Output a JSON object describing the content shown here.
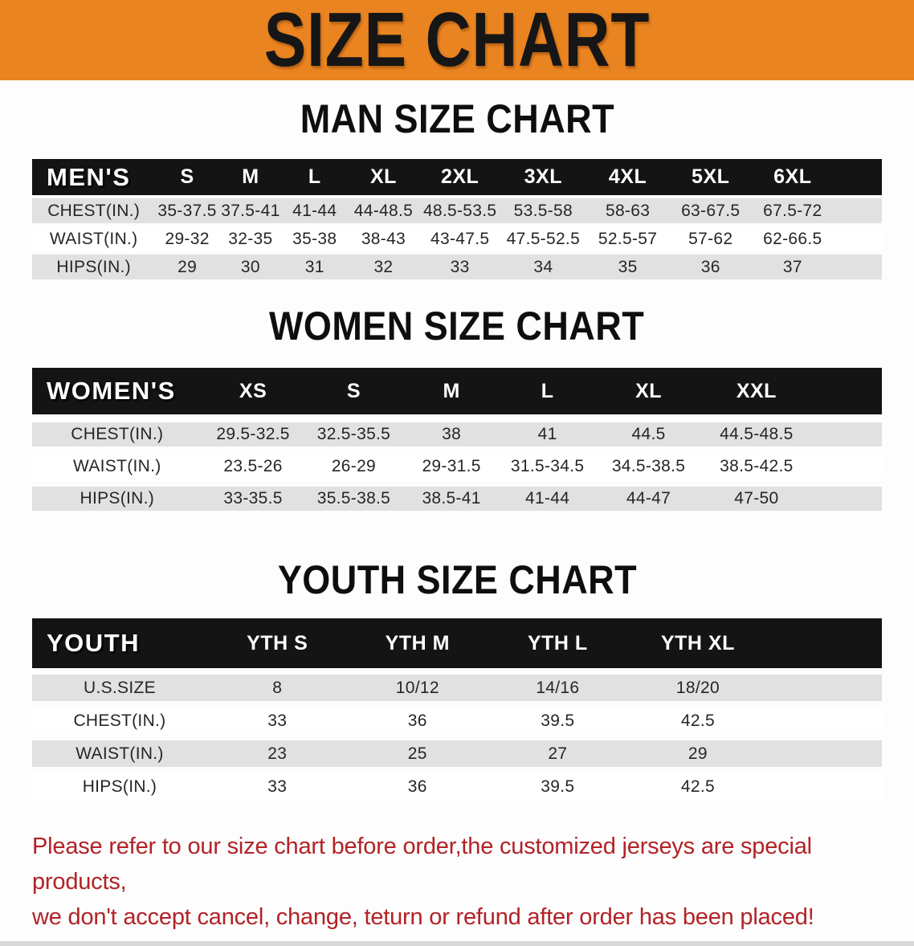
{
  "banner": {
    "title": "SIZE CHART"
  },
  "sections": [
    {
      "id": "man",
      "title": "MAN SIZE CHART",
      "table": {
        "header": [
          "MEN'S",
          "S",
          "M",
          "L",
          "XL",
          "2XL",
          "3XL",
          "4XL",
          "5XL",
          "6XL"
        ],
        "rows": [
          {
            "label": "CHEST(IN.)",
            "values": [
              "35-37.5",
              "37.5-41",
              "41-44",
              "44-48.5",
              "48.5-53.5",
              "53.5-58",
              "58-63",
              "63-67.5",
              "67.5-72"
            ]
          },
          {
            "label": "WAIST(IN.)",
            "values": [
              "29-32",
              "32-35",
              "35-38",
              "38-43",
              "43-47.5",
              "47.5-52.5",
              "52.5-57",
              "57-62",
              "62-66.5"
            ]
          },
          {
            "label": "HIPS(IN.)",
            "values": [
              "29",
              "30",
              "31",
              "32",
              "33",
              "34",
              "35",
              "36",
              "37"
            ]
          }
        ]
      }
    },
    {
      "id": "women",
      "title": "WOMEN SIZE CHART",
      "table": {
        "header": [
          "WOMEN'S",
          "XS",
          "S",
          "M",
          "L",
          "XL",
          "XXL"
        ],
        "rows": [
          {
            "label": "CHEST(IN.)",
            "values": [
              "29.5-32.5",
              "32.5-35.5",
              "38",
              "41",
              "44.5",
              "44.5-48.5"
            ]
          },
          {
            "label": "WAIST(IN.)",
            "values": [
              "23.5-26",
              "26-29",
              "29-31.5",
              "31.5-34.5",
              "34.5-38.5",
              "38.5-42.5"
            ]
          },
          {
            "label": "HIPS(IN.)",
            "values": [
              "33-35.5",
              "35.5-38.5",
              "38.5-41",
              "41-44",
              "44-47",
              "47-50"
            ]
          }
        ]
      }
    },
    {
      "id": "youth",
      "title": "YOUTH SIZE CHART",
      "table": {
        "header": [
          "YOUTH",
          "YTH S",
          "YTH M",
          "YTH L",
          "YTH XL"
        ],
        "rows": [
          {
            "label": "U.S.SIZE",
            "values": [
              "8",
              "10/12",
              "14/16",
              "18/20"
            ]
          },
          {
            "label": "CHEST(IN.)",
            "values": [
              "33",
              "36",
              "39.5",
              "42.5"
            ]
          },
          {
            "label": "WAIST(IN.)",
            "values": [
              "23",
              "25",
              "27",
              "29"
            ]
          },
          {
            "label": "HIPS(IN.)",
            "values": [
              "33",
              "36",
              "39.5",
              "42.5"
            ]
          }
        ]
      }
    }
  ],
  "footer": {
    "lines": [
      "Please refer to our size chart before order,the customized jerseys are special products,",
      "we don't accept cancel, change, teturn or refund after order has been placed!"
    ]
  },
  "colors": {
    "banner_bg": "#EA8420",
    "header_bar": "#141414",
    "row_shaded": "#E1E1E1",
    "note_text": "#B22226"
  }
}
